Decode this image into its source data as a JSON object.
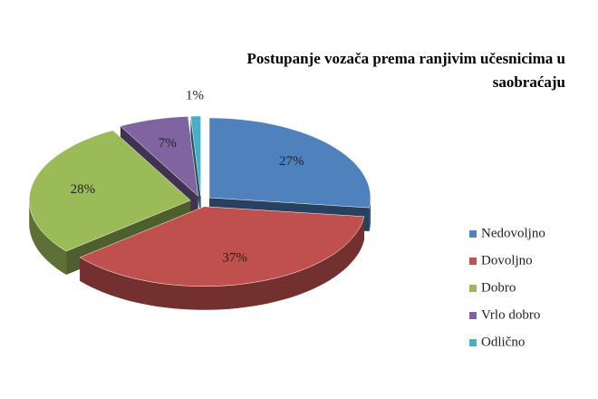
{
  "chart_data": {
    "type": "pie",
    "title": "Postupanje vozača prema ranjivim učesnicima u saobraćaju",
    "categories": [
      "Nedovoljno",
      "Dovoljno",
      "Dobro",
      "Vrlo dobro",
      "Odlično"
    ],
    "values": [
      27,
      37,
      28,
      7,
      1
    ],
    "value_labels": [
      "27%",
      "37%",
      "28%",
      "7%",
      "1%"
    ],
    "colors": [
      "#4f81bd",
      "#c0504d",
      "#9bbb59",
      "#8064a2",
      "#4bacc6"
    ],
    "legend": "right"
  }
}
